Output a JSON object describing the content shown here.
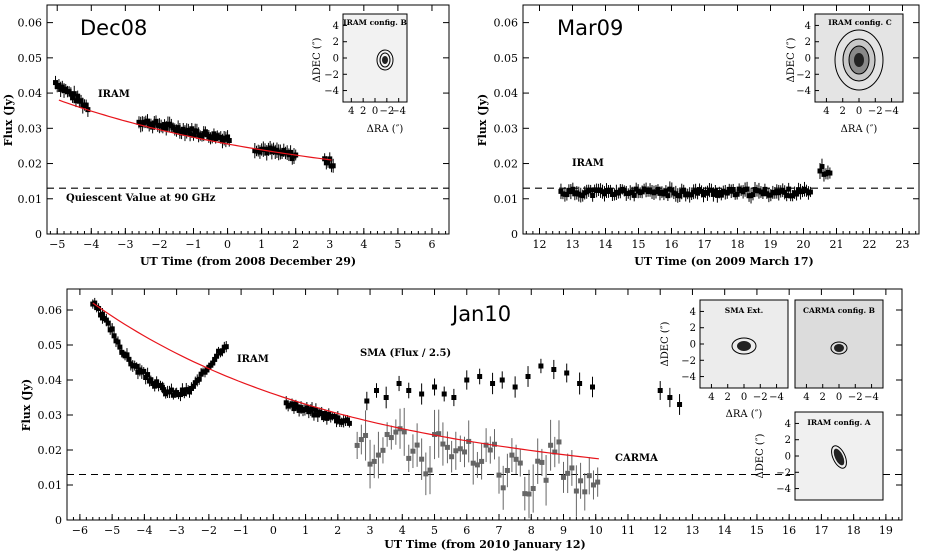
{
  "chart_data": [
    {
      "id": "dec08",
      "type": "scatter",
      "title": "Dec08",
      "xlabel": "UT Time (from 2008 December 29)",
      "ylabel": "Flux (Jy)",
      "xlim": [
        -5.3,
        6.5
      ],
      "ylim": [
        0,
        0.065
      ],
      "xticks": [
        "−5",
        "−4",
        "−3",
        "−2",
        "−1",
        "0",
        "1",
        "2",
        "3",
        "4",
        "5",
        "6"
      ],
      "yticks": [
        "0",
        "0.01",
        "0.02",
        "0.03",
        "0.04",
        "0.05",
        "0.06"
      ],
      "quiescent_value": 0.013,
      "quiescent_label": "Quiescent Value at 90 GHz",
      "series": [
        {
          "name": "IRAM",
          "label_text": "IRAM",
          "segments": [
            {
              "x0": -5.05,
              "x1": -4.1,
              "y0": 0.043,
              "y1": 0.036
            },
            {
              "x0": -2.6,
              "x1": 0.05,
              "y0": 0.032,
              "y1": 0.027
            },
            {
              "x0": 0.8,
              "x1": 2.05,
              "y0": 0.0245,
              "y1": 0.022
            },
            {
              "x0": 2.85,
              "x1": 3.1,
              "y0": 0.021,
              "y1": 0.02
            }
          ]
        }
      ],
      "fit_curve": {
        "y_start": 0.038,
        "y_end": 0.021,
        "x_start": -4.95,
        "x_end": 3.05
      },
      "inset": {
        "title": "IRAM config. B",
        "xlabel": "ΔRA (″)",
        "ylabel": "ΔDEC (″)",
        "xticks": [
          "4",
          "2",
          "0",
          "−2",
          "−4"
        ],
        "yticks": [
          "4",
          "2",
          "0",
          "−2",
          "−4"
        ]
      }
    },
    {
      "id": "mar09",
      "type": "scatter",
      "title": "Mar09",
      "xlabel": "UT Time (on 2009 March 17)",
      "ylabel": "Flux (Jy)",
      "xlim": [
        11.5,
        23.5
      ],
      "ylim": [
        0,
        0.065
      ],
      "xticks": [
        "12",
        "13",
        "14",
        "15",
        "16",
        "17",
        "18",
        "19",
        "20",
        "21",
        "22",
        "23"
      ],
      "yticks": [
        "0",
        "0.01",
        "0.02",
        "0.03",
        "0.04",
        "0.05",
        "0.06"
      ],
      "quiescent_value": 0.013,
      "series": [
        {
          "name": "IRAM",
          "label_text": "IRAM",
          "segments": [
            {
              "x0": 12.65,
              "x1": 20.25,
              "y0": 0.0118,
              "y1": 0.0118
            },
            {
              "x0": 20.5,
              "x1": 20.85,
              "y0": 0.0185,
              "y1": 0.0165
            }
          ]
        }
      ],
      "inset": {
        "title": "IRAM config. C",
        "xlabel": "ΔRA (″)",
        "ylabel": "ΔDEC (″)",
        "xticks": [
          "4",
          "2",
          "0",
          "−2",
          "−4"
        ],
        "yticks": [
          "4",
          "2",
          "0",
          "−2",
          "−4"
        ]
      }
    },
    {
      "id": "jan10",
      "type": "scatter",
      "title": "Jan10",
      "xlabel": "UT Time (from 2010 January 12)",
      "ylabel": "Flux (Jy)",
      "xlim": [
        -6.4,
        19.5
      ],
      "ylim": [
        0,
        0.066
      ],
      "xticks": [
        "−6",
        "−5",
        "−4",
        "−3",
        "−2",
        "−1",
        "0",
        "1",
        "2",
        "3",
        "4",
        "5",
        "6",
        "7",
        "8",
        "9",
        "10",
        "11",
        "12",
        "13",
        "14",
        "15",
        "16",
        "17",
        "18",
        "19"
      ],
      "yticks": [
        "0",
        "0.01",
        "0.02",
        "0.03",
        "0.04",
        "0.05",
        "0.06"
      ],
      "quiescent_value": 0.013,
      "series": [
        {
          "name": "IRAM",
          "label_text": "IRAM",
          "points": [
            [
              -5.6,
              0.062
            ],
            [
              -5.3,
              0.058
            ],
            [
              -5.0,
              0.054
            ],
            [
              -4.6,
              0.047
            ],
            [
              -4.2,
              0.043
            ],
            [
              -3.8,
              0.04
            ],
            [
              -3.4,
              0.037
            ],
            [
              -3.0,
              0.036
            ],
            [
              -2.6,
              0.037
            ],
            [
              -2.3,
              0.04
            ],
            [
              -2.0,
              0.044
            ],
            [
              -1.7,
              0.048
            ],
            [
              -1.4,
              0.051
            ],
            [
              0.4,
              0.033
            ],
            [
              0.8,
              0.032
            ],
            [
              1.2,
              0.031
            ],
            [
              1.6,
              0.03
            ],
            [
              2.0,
              0.029
            ],
            [
              2.4,
              0.028
            ]
          ]
        },
        {
          "name": "SMA (Flux / 2.5)",
          "label_text": "SMA (Flux / 2.5)",
          "points": [
            [
              2.9,
              0.034
            ],
            [
              3.2,
              0.037
            ],
            [
              3.5,
              0.035
            ],
            [
              3.9,
              0.039
            ],
            [
              4.2,
              0.037
            ],
            [
              4.6,
              0.036
            ],
            [
              5.0,
              0.038
            ],
            [
              5.3,
              0.036
            ],
            [
              5.6,
              0.035
            ],
            [
              6.0,
              0.04
            ],
            [
              6.4,
              0.041
            ],
            [
              6.8,
              0.039
            ],
            [
              7.1,
              0.04
            ],
            [
              7.5,
              0.038
            ],
            [
              7.9,
              0.041
            ],
            [
              8.3,
              0.044
            ],
            [
              8.7,
              0.043
            ],
            [
              9.1,
              0.042
            ],
            [
              9.5,
              0.039
            ],
            [
              9.9,
              0.038
            ],
            [
              12.0,
              0.037
            ],
            [
              12.3,
              0.035
            ],
            [
              12.6,
              0.033
            ]
          ]
        },
        {
          "name": "CARMA",
          "label_text": "CARMA",
          "points": [
            [
              2.6,
              0.024
            ],
            [
              3.0,
              0.018
            ],
            [
              3.4,
              0.022
            ],
            [
              3.8,
              0.026
            ],
            [
              4.2,
              0.02
            ],
            [
              4.6,
              0.016
            ],
            [
              5.0,
              0.024
            ],
            [
              5.4,
              0.018
            ],
            [
              5.8,
              0.022
            ],
            [
              6.2,
              0.015
            ],
            [
              6.6,
              0.02
            ],
            [
              7.0,
              0.012
            ],
            [
              7.4,
              0.017
            ],
            [
              7.8,
              0.008
            ],
            [
              8.2,
              0.014
            ],
            [
              8.6,
              0.02
            ],
            [
              9.0,
              0.015
            ],
            [
              9.4,
              0.01
            ],
            [
              9.8,
              0.012
            ]
          ]
        }
      ],
      "fit_curve": {
        "y_start": 0.062,
        "y_end": 0.0175,
        "x_start": -5.6,
        "x_end": 10.1
      },
      "insets": [
        {
          "title": "SMA Ext.",
          "xlabel": "ΔRA (″)",
          "ylabel": "ΔDEC (″)",
          "xticks": [
            "4",
            "2",
            "0",
            "−2",
            "−4"
          ],
          "yticks": [
            "4",
            "2",
            "0",
            "−2",
            "−4"
          ]
        },
        {
          "title": "CARMA config. B",
          "xticks": [
            "4",
            "2",
            "0",
            "−2",
            "−4"
          ]
        },
        {
          "title": "IRAM config. A",
          "ylabel": "ΔDEC (″)",
          "yticks": [
            "4",
            "2",
            "0",
            "−2",
            "−4"
          ]
        }
      ]
    }
  ]
}
